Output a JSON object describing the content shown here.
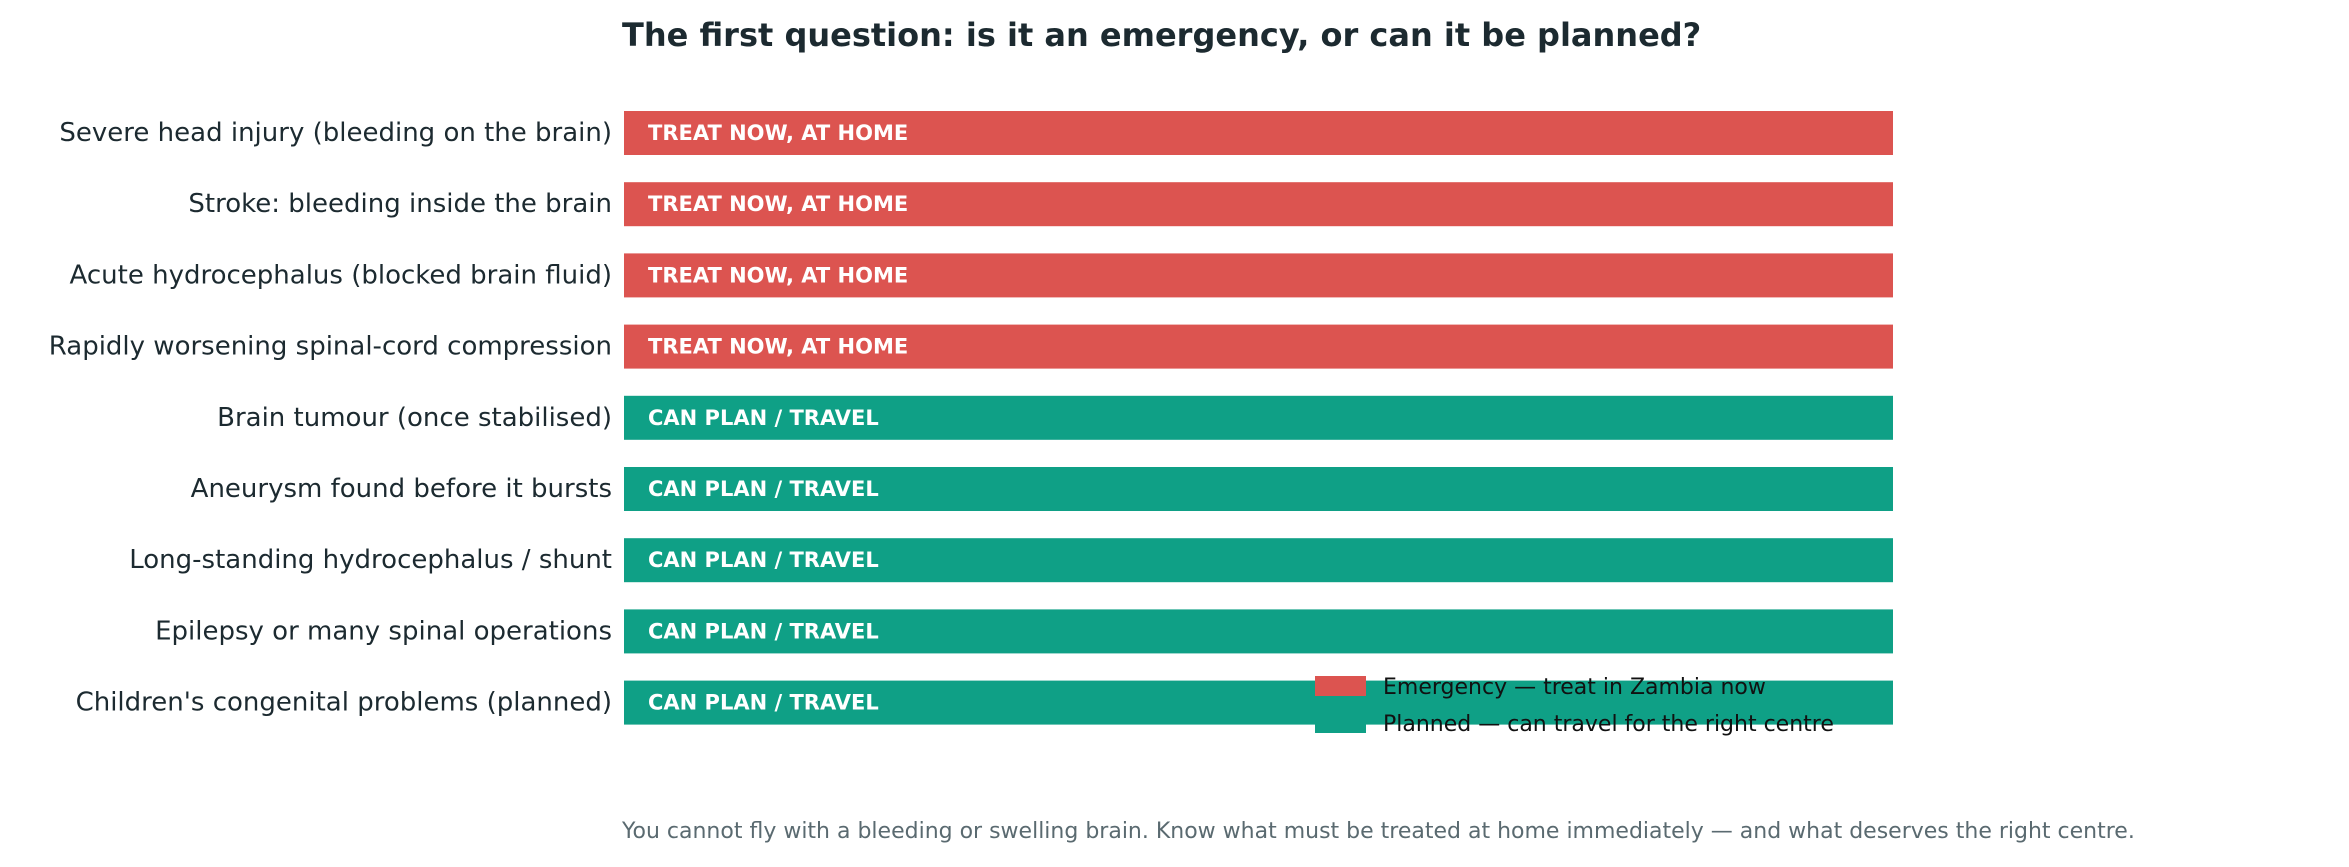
{
  "chart_data": {
    "type": "bar",
    "orientation": "horizontal",
    "title": "The first question: is it an emergency, or can it be planned?",
    "caption": "You cannot fly with a bleeding or swelling brain. Know what must be treated at home immediately — and what deserves the right centre.",
    "categories": [
      "Severe head injury (bleeding on the brain)",
      "Stroke: bleeding inside the brain",
      "Acute hydrocephalus (blocked brain fluid)",
      "Rapidly worsening spinal-cord compression",
      "Brain tumour (once stabilised)",
      "Aneurysm found before it bursts",
      "Long-standing hydrocephalus / shunt",
      "Epilepsy or many spinal operations",
      "Children's congenital problems (planned)"
    ],
    "values": [
      1,
      1,
      1,
      1,
      1,
      1,
      1,
      1,
      1
    ],
    "bar_groups": [
      "emergency",
      "emergency",
      "emergency",
      "emergency",
      "planned",
      "planned",
      "planned",
      "planned",
      "planned"
    ],
    "bar_labels": [
      "TREAT NOW, AT HOME",
      "TREAT NOW, AT HOME",
      "TREAT NOW, AT HOME",
      "TREAT NOW, AT HOME",
      "CAN PLAN / TRAVEL",
      "CAN PLAN / TRAVEL",
      "CAN PLAN / TRAVEL",
      "CAN PLAN / TRAVEL",
      "CAN PLAN / TRAVEL"
    ],
    "legend": [
      {
        "key": "emergency",
        "label": "Emergency — treat in Zambia now",
        "color": "#dc5450"
      },
      {
        "key": "planned",
        "label": "Planned — can travel for the right centre",
        "color": "#0fa086"
      }
    ],
    "legend_position": "lower-right",
    "xlim": [
      0,
      1
    ],
    "grid": false,
    "axes_visible": false,
    "colors": {
      "title": "#1c2a30",
      "label": "#1c2a30",
      "caption": "#5a6a70",
      "bar_text": "#ffffff"
    }
  }
}
